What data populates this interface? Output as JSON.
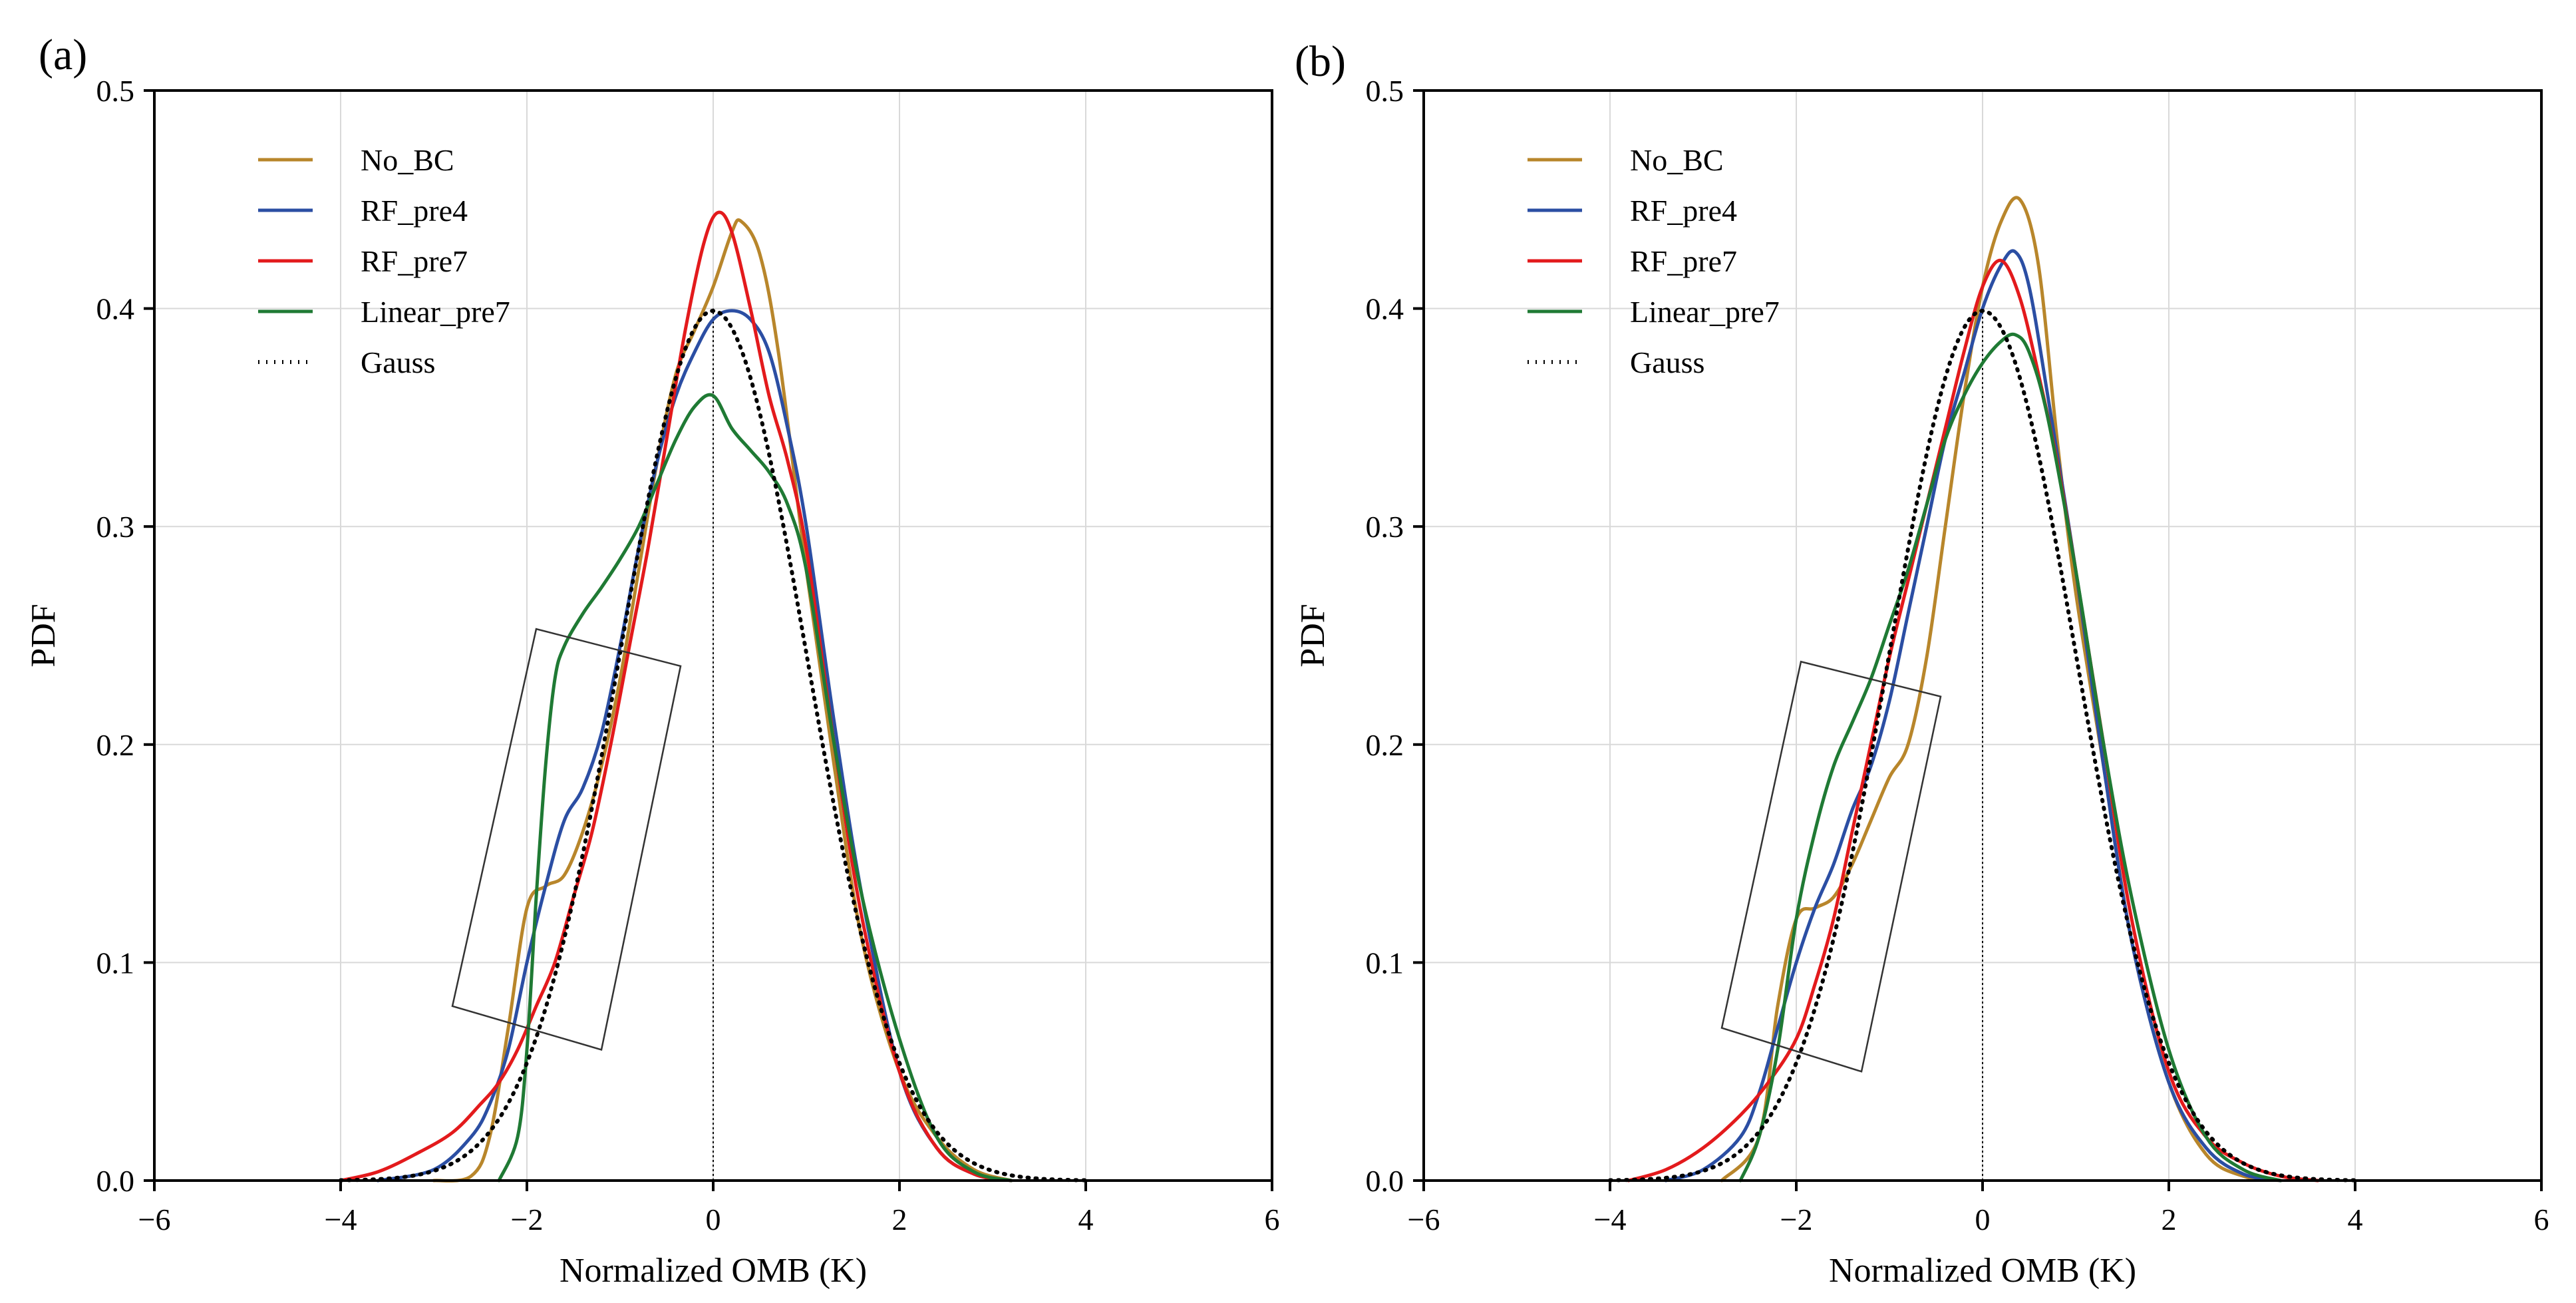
{
  "figure": {
    "panel_labels": [
      "(a)",
      "(b)"
    ]
  },
  "chart_data": [
    {
      "type": "line",
      "panel": "(a)",
      "xlabel": "Normalized OMB (K)",
      "ylabel": "PDF",
      "xlim": [
        -6,
        6
      ],
      "ylim": [
        0,
        0.5
      ],
      "xticks": [
        -6,
        -4,
        -2,
        0,
        2,
        4,
        6
      ],
      "xtick_labels": [
        "−6",
        "−4",
        "−2",
        "0",
        "2",
        "4",
        "6"
      ],
      "yticks": [
        0,
        0.1,
        0.2,
        0.3,
        0.4,
        0.5
      ],
      "ytick_labels": [
        "0.0",
        "0.1",
        "0.2",
        "0.3",
        "0.4",
        "0.5"
      ],
      "grid": true,
      "legend_position": "top-left",
      "vertical_reference_x": 0,
      "inset_box": [
        [
          -2.8,
          0.08
        ],
        [
          -1.2,
          0.06
        ],
        [
          -0.35,
          0.236
        ],
        [
          -1.9,
          0.253
        ]
      ],
      "series": [
        {
          "name": "No_BC",
          "color": "#b8862b",
          "style": "solid",
          "x": [
            -3.0,
            -2.6,
            -2.4,
            -2.2,
            -2.0,
            -1.8,
            -1.6,
            -1.4,
            -1.2,
            -1.0,
            -0.8,
            -0.6,
            -0.4,
            -0.2,
            0.0,
            0.2,
            0.3,
            0.5,
            0.7,
            1.0,
            1.3,
            1.6,
            2.0,
            2.4,
            2.8,
            3.2
          ],
          "y": [
            0.0,
            0.002,
            0.02,
            0.07,
            0.125,
            0.135,
            0.14,
            0.16,
            0.19,
            0.23,
            0.28,
            0.33,
            0.37,
            0.39,
            0.41,
            0.435,
            0.44,
            0.425,
            0.38,
            0.28,
            0.19,
            0.11,
            0.05,
            0.02,
            0.005,
            0.0
          ]
        },
        {
          "name": "RF_pre4",
          "color": "#2b4ea3",
          "style": "solid",
          "x": [
            -3.6,
            -3.0,
            -2.6,
            -2.4,
            -2.2,
            -2.0,
            -1.8,
            -1.6,
            -1.4,
            -1.2,
            -1.0,
            -0.8,
            -0.6,
            -0.4,
            -0.2,
            0.0,
            0.2,
            0.4,
            0.6,
            0.8,
            1.0,
            1.3,
            1.6,
            2.0,
            2.4,
            2.8,
            3.2
          ],
          "y": [
            0.0,
            0.005,
            0.02,
            0.035,
            0.06,
            0.1,
            0.135,
            0.165,
            0.18,
            0.205,
            0.245,
            0.29,
            0.33,
            0.36,
            0.38,
            0.395,
            0.399,
            0.395,
            0.38,
            0.345,
            0.3,
            0.21,
            0.13,
            0.05,
            0.015,
            0.003,
            0.0
          ]
        },
        {
          "name": "RF_pre7",
          "color": "#e31a1c",
          "style": "solid",
          "x": [
            -4.0,
            -3.6,
            -3.2,
            -2.8,
            -2.5,
            -2.3,
            -2.1,
            -1.9,
            -1.7,
            -1.5,
            -1.3,
            -1.1,
            -0.9,
            -0.7,
            -0.5,
            -0.3,
            -0.1,
            0.05,
            0.2,
            0.4,
            0.6,
            0.8,
            1.0,
            1.3,
            1.6,
            2.0,
            2.4,
            2.8,
            3.2
          ],
          "y": [
            0.0,
            0.004,
            0.012,
            0.022,
            0.035,
            0.045,
            0.06,
            0.08,
            0.1,
            0.13,
            0.16,
            0.2,
            0.245,
            0.29,
            0.34,
            0.39,
            0.43,
            0.444,
            0.435,
            0.4,
            0.36,
            0.33,
            0.29,
            0.2,
            0.12,
            0.05,
            0.015,
            0.003,
            0.0
          ]
        },
        {
          "name": "Linear_pre7",
          "color": "#1f7a34",
          "style": "solid",
          "x": [
            -2.3,
            -2.1,
            -2.0,
            -1.9,
            -1.8,
            -1.7,
            -1.6,
            -1.4,
            -1.2,
            -1.0,
            -0.8,
            -0.6,
            -0.4,
            -0.2,
            0.0,
            0.2,
            0.4,
            0.6,
            0.8,
            1.0,
            1.3,
            1.6,
            2.0,
            2.4,
            2.8,
            3.2
          ],
          "y": [
            0.0,
            0.02,
            0.06,
            0.13,
            0.19,
            0.23,
            0.245,
            0.26,
            0.272,
            0.285,
            0.3,
            0.32,
            0.34,
            0.355,
            0.36,
            0.345,
            0.335,
            0.325,
            0.31,
            0.28,
            0.2,
            0.13,
            0.065,
            0.02,
            0.004,
            0.0
          ]
        },
        {
          "name": "Gauss",
          "color": "#000000",
          "style": "dotted",
          "gaussian": true
        }
      ]
    },
    {
      "type": "line",
      "panel": "(b)",
      "xlabel": "Normalized OMB (K)",
      "ylabel": "PDF",
      "xlim": [
        -6,
        6
      ],
      "ylim": [
        0,
        0.5
      ],
      "xticks": [
        -6,
        -4,
        -2,
        0,
        2,
        4,
        6
      ],
      "xtick_labels": [
        "−6",
        "−4",
        "−2",
        "0",
        "2",
        "4",
        "6"
      ],
      "yticks": [
        0,
        0.1,
        0.2,
        0.3,
        0.4,
        0.5
      ],
      "ytick_labels": [
        "0.0",
        "0.1",
        "0.2",
        "0.3",
        "0.4",
        "0.5"
      ],
      "grid": true,
      "legend_position": "top-left",
      "vertical_reference_x": 0,
      "inset_box": [
        [
          -2.8,
          0.07
        ],
        [
          -1.3,
          0.05
        ],
        [
          -0.45,
          0.222
        ],
        [
          -1.95,
          0.238
        ]
      ],
      "series": [
        {
          "name": "No_BC",
          "color": "#b8862b",
          "style": "solid",
          "x": [
            -2.8,
            -2.4,
            -2.2,
            -2.0,
            -1.8,
            -1.6,
            -1.4,
            -1.2,
            -1.0,
            -0.8,
            -0.6,
            -0.4,
            -0.2,
            0.0,
            0.2,
            0.4,
            0.6,
            0.8,
            1.0,
            1.3,
            1.6,
            2.0,
            2.4,
            2.8,
            3.2
          ],
          "y": [
            0.0,
            0.02,
            0.08,
            0.12,
            0.125,
            0.13,
            0.145,
            0.165,
            0.185,
            0.2,
            0.24,
            0.3,
            0.36,
            0.41,
            0.44,
            0.45,
            0.42,
            0.34,
            0.27,
            0.19,
            0.11,
            0.045,
            0.012,
            0.002,
            0.0
          ]
        },
        {
          "name": "RF_pre4",
          "color": "#2b4ea3",
          "style": "solid",
          "x": [
            -3.4,
            -3.0,
            -2.6,
            -2.4,
            -2.2,
            -2.0,
            -1.8,
            -1.6,
            -1.4,
            -1.2,
            -1.0,
            -0.8,
            -0.6,
            -0.4,
            -0.2,
            0.0,
            0.2,
            0.35,
            0.5,
            0.7,
            1.0,
            1.3,
            1.6,
            2.0,
            2.4,
            2.8,
            3.2
          ],
          "y": [
            0.0,
            0.005,
            0.02,
            0.04,
            0.07,
            0.1,
            0.125,
            0.145,
            0.17,
            0.19,
            0.22,
            0.26,
            0.3,
            0.34,
            0.37,
            0.4,
            0.42,
            0.426,
            0.41,
            0.36,
            0.28,
            0.19,
            0.11,
            0.045,
            0.015,
            0.003,
            0.0
          ]
        },
        {
          "name": "RF_pre7",
          "color": "#e31a1c",
          "style": "solid",
          "x": [
            -3.8,
            -3.4,
            -3.0,
            -2.6,
            -2.3,
            -2.0,
            -1.8,
            -1.6,
            -1.4,
            -1.2,
            -1.0,
            -0.8,
            -0.6,
            -0.4,
            -0.2,
            0.0,
            0.2,
            0.4,
            0.6,
            0.8,
            1.0,
            1.3,
            1.6,
            2.0,
            2.4,
            2.8,
            3.2,
            3.6
          ],
          "y": [
            0.0,
            0.005,
            0.015,
            0.03,
            0.045,
            0.065,
            0.09,
            0.12,
            0.16,
            0.2,
            0.24,
            0.275,
            0.31,
            0.345,
            0.38,
            0.41,
            0.422,
            0.405,
            0.37,
            0.33,
            0.28,
            0.2,
            0.12,
            0.05,
            0.02,
            0.008,
            0.002,
            0.0
          ]
        },
        {
          "name": "Linear_pre7",
          "color": "#1f7a34",
          "style": "solid",
          "x": [
            -2.6,
            -2.4,
            -2.2,
            -2.0,
            -1.8,
            -1.6,
            -1.4,
            -1.2,
            -1.0,
            -0.8,
            -0.6,
            -0.4,
            -0.2,
            0.0,
            0.2,
            0.35,
            0.5,
            0.7,
            1.0,
            1.3,
            1.6,
            2.0,
            2.4,
            2.8,
            3.2
          ],
          "y": [
            0.0,
            0.02,
            0.06,
            0.12,
            0.16,
            0.19,
            0.21,
            0.23,
            0.255,
            0.28,
            0.31,
            0.34,
            0.36,
            0.375,
            0.385,
            0.388,
            0.38,
            0.35,
            0.28,
            0.2,
            0.13,
            0.06,
            0.02,
            0.005,
            0.0
          ]
        },
        {
          "name": "Gauss",
          "color": "#000000",
          "style": "dotted",
          "gaussian": true
        }
      ]
    }
  ]
}
